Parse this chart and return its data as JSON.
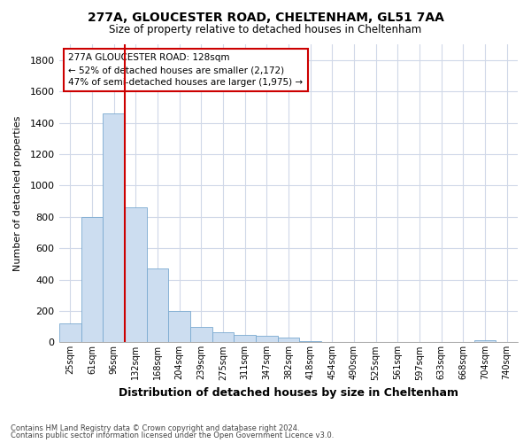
{
  "title1": "277A, GLOUCESTER ROAD, CHELTENHAM, GL51 7AA",
  "title2": "Size of property relative to detached houses in Cheltenham",
  "xlabel": "Distribution of detached houses by size in Cheltenham",
  "ylabel": "Number of detached properties",
  "footer1": "Contains HM Land Registry data © Crown copyright and database right 2024.",
  "footer2": "Contains public sector information licensed under the Open Government Licence v3.0.",
  "bin_labels": [
    "25sqm",
    "61sqm",
    "96sqm",
    "132sqm",
    "168sqm",
    "204sqm",
    "239sqm",
    "275sqm",
    "311sqm",
    "347sqm",
    "382sqm",
    "418sqm",
    "454sqm",
    "490sqm",
    "525sqm",
    "561sqm",
    "597sqm",
    "633sqm",
    "668sqm",
    "704sqm",
    "740sqm"
  ],
  "bar_values": [
    120,
    800,
    1460,
    860,
    470,
    200,
    100,
    65,
    50,
    40,
    30,
    10,
    3,
    3,
    3,
    2,
    2,
    2,
    2,
    14,
    0
  ],
  "bar_color": "#ccddf0",
  "bar_edge_color": "#7aaad0",
  "grid_color": "#d0d8e8",
  "bg_color": "#ffffff",
  "vline_color": "#cc0000",
  "annotation_text": "277A GLOUCESTER ROAD: 128sqm\n← 52% of detached houses are smaller (2,172)\n47% of semi-detached houses are larger (1,975) →",
  "annotation_box_color": "#ffffff",
  "annotation_box_edge": "#cc0000",
  "ylim": [
    0,
    1900
  ],
  "yticks": [
    0,
    200,
    400,
    600,
    800,
    1000,
    1200,
    1400,
    1600,
    1800
  ],
  "vline_position": 3.5
}
